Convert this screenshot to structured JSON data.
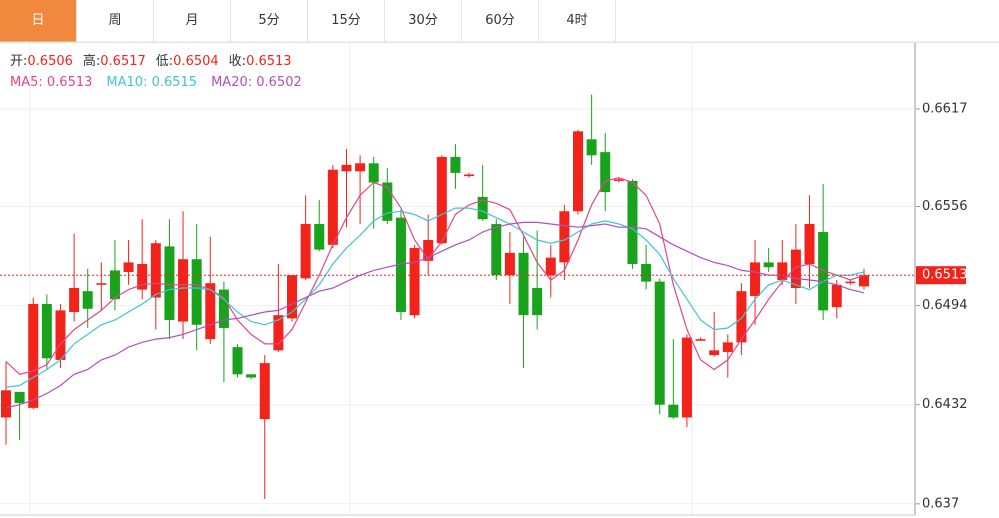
{
  "tabs": [
    "日",
    "周",
    "月",
    "5分",
    "15分",
    "30分",
    "60分",
    "4时"
  ],
  "active_tab": 0,
  "ohlc_labels": [
    "开:",
    "高:",
    "低:",
    "收:"
  ],
  "chart_data": {
    "type": "candlestick",
    "up_color": "#f2231b",
    "down_color": "#19a21b",
    "ylim": [
      0.6363,
      0.6657
    ],
    "yticks": [
      0.6617,
      0.6556,
      0.6494,
      0.6432,
      0.637
    ],
    "current_price_line": true,
    "open": [
      0.6424,
      0.644,
      0.643,
      0.6495,
      0.646,
      0.649,
      0.6503,
      0.6507,
      0.6516,
      0.6515,
      0.6504,
      0.6499,
      0.6531,
      0.6484,
      0.6523,
      0.6473,
      0.6504,
      0.6468,
      0.6451,
      0.6423,
      0.6466,
      0.6486,
      0.6511,
      0.6545,
      0.6532,
      0.6578,
      0.6578,
      0.6583,
      0.6571,
      0.6549,
      0.6488,
      0.6522,
      0.6533,
      0.6587,
      0.6575,
      0.6562,
      0.6545,
      0.6513,
      0.6527,
      0.6505,
      0.6513,
      0.6521,
      0.6553,
      0.6598,
      0.659,
      0.6572,
      0.6572,
      0.652,
      0.6509,
      0.6432,
      0.6424,
      0.6472,
      0.6463,
      0.6465,
      0.6471,
      0.65,
      0.6521,
      0.651,
      0.6505,
      0.652,
      0.654,
      0.6493,
      0.6508,
      0.6506
    ],
    "high": [
      0.6459,
      0.644,
      0.6499,
      0.6501,
      0.6495,
      0.6539,
      0.6517,
      0.6521,
      0.6535,
      0.6535,
      0.6548,
      0.6535,
      0.6548,
      0.6553,
      0.6545,
      0.6537,
      0.6509,
      0.647,
      0.6451,
      0.6463,
      0.652,
      0.6513,
      0.6563,
      0.656,
      0.6582,
      0.6592,
      0.6588,
      0.6587,
      0.658,
      0.6554,
      0.6532,
      0.6551,
      0.6588,
      0.6595,
      0.6577,
      0.6582,
      0.6548,
      0.654,
      0.6537,
      0.6541,
      0.6532,
      0.6557,
      0.6604,
      0.6626,
      0.6602,
      0.6574,
      0.6573,
      0.6532,
      0.6511,
      0.6473,
      0.6476,
      0.6474,
      0.649,
      0.6476,
      0.6508,
      0.6535,
      0.653,
      0.6535,
      0.6545,
      0.6563,
      0.657,
      0.651,
      0.651,
      0.6517
    ],
    "low": [
      0.6407,
      0.641,
      0.6429,
      0.6454,
      0.6455,
      0.6484,
      0.648,
      0.6491,
      0.6491,
      0.6507,
      0.6498,
      0.6479,
      0.6473,
      0.6473,
      0.6466,
      0.647,
      0.6446,
      0.6449,
      0.6448,
      0.6373,
      0.6465,
      0.6484,
      0.651,
      0.6528,
      0.653,
      0.6543,
      0.6545,
      0.6542,
      0.6545,
      0.6485,
      0.6486,
      0.6513,
      0.6532,
      0.6567,
      0.6574,
      0.6547,
      0.651,
      0.6495,
      0.6455,
      0.6479,
      0.6499,
      0.651,
      0.6551,
      0.6582,
      0.6553,
      0.6571,
      0.6517,
      0.6504,
      0.6426,
      0.6423,
      0.6418,
      0.6472,
      0.6462,
      0.6449,
      0.6463,
      0.6482,
      0.6515,
      0.6507,
      0.6495,
      0.6505,
      0.6485,
      0.6486,
      0.6507,
      0.6504
    ],
    "close": [
      0.6441,
      0.6433,
      0.6495,
      0.6461,
      0.6491,
      0.6505,
      0.6492,
      0.6508,
      0.6498,
      0.6521,
      0.652,
      0.6533,
      0.6485,
      0.6523,
      0.6482,
      0.6508,
      0.648,
      0.6451,
      0.6449,
      0.6458,
      0.6488,
      0.6513,
      0.6545,
      0.6529,
      0.6579,
      0.6582,
      0.6583,
      0.6571,
      0.6547,
      0.649,
      0.653,
      0.6535,
      0.6587,
      0.6577,
      0.6576,
      0.6548,
      0.6513,
      0.6527,
      0.6488,
      0.6488,
      0.6524,
      0.6553,
      0.6603,
      0.6588,
      0.6565,
      0.6573,
      0.652,
      0.6509,
      0.6432,
      0.6424,
      0.6474,
      0.6473,
      0.6466,
      0.6471,
      0.6503,
      0.6521,
      0.6518,
      0.6521,
      0.6529,
      0.6545,
      0.6491,
      0.6507,
      0.6509,
      0.6513
    ],
    "series": [
      {
        "name": "MA5",
        "color": "#e4468c",
        "values": [
          0.6459,
          0.6451,
          0.6453,
          0.6457,
          0.647,
          0.6479,
          0.6485,
          0.6491,
          0.6499,
          0.6504,
          0.6507,
          0.6508,
          0.6507,
          0.6507,
          0.6507,
          0.6504,
          0.6499,
          0.6485,
          0.6476,
          0.647,
          0.647,
          0.6479,
          0.6496,
          0.6513,
          0.6532,
          0.6549,
          0.6563,
          0.6571,
          0.6568,
          0.6555,
          0.6535,
          0.6523,
          0.6534,
          0.6551,
          0.6557,
          0.656,
          0.6558,
          0.6554,
          0.6538,
          0.6521,
          0.651,
          0.6516,
          0.6535,
          0.6557,
          0.6572,
          0.6574,
          0.6571,
          0.6563,
          0.6545,
          0.6507,
          0.6479,
          0.646,
          0.6454,
          0.646,
          0.6473,
          0.6485,
          0.6498,
          0.6509,
          0.6518,
          0.652,
          0.6516,
          0.6513,
          0.651,
          0.6513
        ]
      },
      {
        "name": "MA10",
        "color": "#3fc4d6",
        "values": [
          0.6443,
          0.6444,
          0.6449,
          0.6454,
          0.646,
          0.647,
          0.6476,
          0.6482,
          0.6485,
          0.649,
          0.6495,
          0.6501,
          0.6504,
          0.6505,
          0.6505,
          0.6504,
          0.6498,
          0.649,
          0.6484,
          0.6482,
          0.6485,
          0.649,
          0.6498,
          0.6507,
          0.652,
          0.653,
          0.6538,
          0.6547,
          0.6552,
          0.6553,
          0.6551,
          0.6547,
          0.6551,
          0.6555,
          0.6555,
          0.6553,
          0.6549,
          0.6545,
          0.654,
          0.6535,
          0.6533,
          0.6535,
          0.654,
          0.6545,
          0.6547,
          0.6545,
          0.6542,
          0.6535,
          0.6526,
          0.6511,
          0.6498,
          0.6485,
          0.6479,
          0.648,
          0.6486,
          0.6498,
          0.6507,
          0.651,
          0.6507,
          0.6504,
          0.6509,
          0.6513,
          0.6513,
          0.6515
        ]
      },
      {
        "name": "MA20",
        "color": "#b04fbf",
        "values": [
          0.643,
          0.6432,
          0.6435,
          0.6439,
          0.6444,
          0.6451,
          0.6454,
          0.646,
          0.6463,
          0.6468,
          0.6471,
          0.6473,
          0.6474,
          0.6476,
          0.6479,
          0.6482,
          0.6485,
          0.6486,
          0.6488,
          0.649,
          0.6491,
          0.6495,
          0.6499,
          0.6503,
          0.6505,
          0.6509,
          0.6513,
          0.6516,
          0.6518,
          0.652,
          0.6521,
          0.6524,
          0.6528,
          0.6532,
          0.6535,
          0.654,
          0.6543,
          0.6545,
          0.6546,
          0.6546,
          0.6545,
          0.6544,
          0.6543,
          0.6544,
          0.6545,
          0.6543,
          0.6543,
          0.6542,
          0.6537,
          0.6532,
          0.6528,
          0.6524,
          0.6521,
          0.6519,
          0.6516,
          0.6515,
          0.6513,
          0.6513,
          0.6511,
          0.651,
          0.6509,
          0.6507,
          0.6504,
          0.6502
        ]
      }
    ]
  }
}
